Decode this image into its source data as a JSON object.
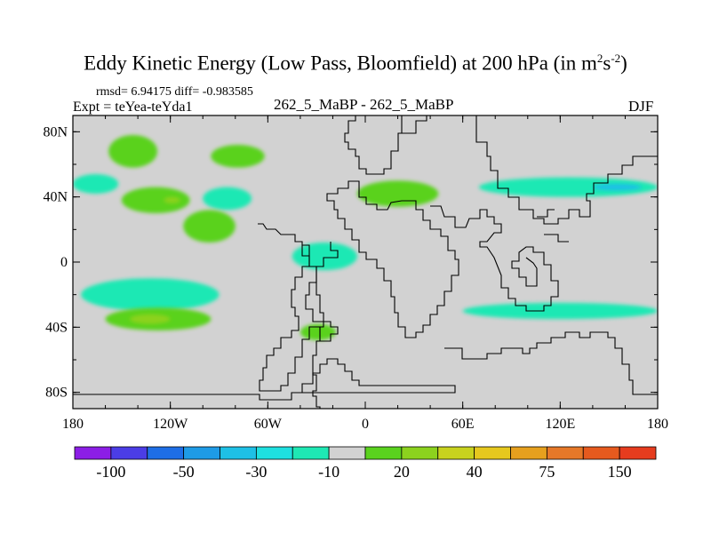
{
  "header": {
    "title_main": "Eddy Kinetic Energy (Low Pass, Bloomfield) at 200 hPa (in m",
    "title_sup1": "2",
    "title_s": "s",
    "title_sup2": "-2",
    "title_end": ")",
    "stats": "rmsd= 6.94175 diff= -0.983585",
    "expt": "Expt = teYea-teYda1",
    "runs": "262_5_MaBP - 262_5_MaBP",
    "season": "DJF"
  },
  "chart_data": {
    "type": "heatmap",
    "title": "Eddy Kinetic Energy (Low Pass, Bloomfield) at 200 hPa (in m^2 s^-2)",
    "xlim": [
      -180,
      180
    ],
    "ylim": [
      -90,
      90
    ],
    "x_ticks": [
      {
        "value": -180,
        "label": "180"
      },
      {
        "value": -120,
        "label": "120W"
      },
      {
        "value": -60,
        "label": "60W"
      },
      {
        "value": 0,
        "label": "0"
      },
      {
        "value": 60,
        "label": "60E"
      },
      {
        "value": 120,
        "label": "120E"
      },
      {
        "value": 180,
        "label": "180"
      }
    ],
    "y_ticks": [
      {
        "value": 80,
        "label": "80N"
      },
      {
        "value": 40,
        "label": "40N"
      },
      {
        "value": 0,
        "label": "0"
      },
      {
        "value": -40,
        "label": "40S"
      },
      {
        "value": -80,
        "label": "80S"
      }
    ],
    "colorbar": {
      "colors": [
        "#8c1ee6",
        "#4b3de6",
        "#1e6ee6",
        "#1e9be6",
        "#1ec0e6",
        "#1ee0e0",
        "#1ee8b4",
        "#d2d2d2",
        "#5ad21e",
        "#8cd21e",
        "#c8d21e",
        "#e6c81e",
        "#e6a01e",
        "#e67828",
        "#e65a1e",
        "#e63c1e"
      ],
      "labels": [
        {
          "after_box": 1,
          "text": "-100"
        },
        {
          "after_box": 3,
          "text": "-50"
        },
        {
          "after_box": 5,
          "text": "-30"
        },
        {
          "after_box": 7,
          "text": "-10"
        },
        {
          "after_box": 9,
          "text": "20"
        },
        {
          "after_box": 11,
          "text": "40"
        },
        {
          "after_box": 13,
          "text": "75"
        },
        {
          "after_box": 15,
          "text": "150"
        }
      ]
    },
    "background_color": "#d2d2d2",
    "coastline_color": "#000000",
    "regions": [
      {
        "name": "N Pacific high-lat band",
        "lon": [
          -158,
          -128
        ],
        "lat": [
          58,
          78
        ],
        "color": "#5ad21e"
      },
      {
        "name": "N Atlantic high-lat band",
        "lon": [
          -95,
          -62
        ],
        "lat": [
          58,
          72
        ],
        "color": "#5ad21e"
      },
      {
        "name": "W Pacific midlat cyan",
        "lon": [
          -180,
          -152
        ],
        "lat": [
          42,
          54
        ],
        "color": "#1ee8b4"
      },
      {
        "name": "Central Pacific green",
        "lon": [
          -150,
          -108
        ],
        "lat": [
          30,
          46
        ],
        "color": "#5ad21e"
      },
      {
        "name": "Central Pacific core",
        "lon": [
          -124,
          -114
        ],
        "lat": [
          36,
          40
        ],
        "color": "#8cd21e"
      },
      {
        "name": "E Pacific cyan",
        "lon": [
          -100,
          -70
        ],
        "lat": [
          32,
          46
        ],
        "color": "#1ee8b4"
      },
      {
        "name": "E Pacific green",
        "lon": [
          -112,
          -80
        ],
        "lat": [
          12,
          32
        ],
        "color": "#5ad21e"
      },
      {
        "name": "Pacific tropical cyan",
        "lon": [
          -175,
          -90
        ],
        "lat": [
          -30,
          -10
        ],
        "color": "#1ee8b4"
      },
      {
        "name": "S Pacific green",
        "lon": [
          -160,
          -95
        ],
        "lat": [
          -42,
          -28
        ],
        "color": "#5ad21e"
      },
      {
        "name": "S Pacific core",
        "lon": [
          -145,
          -120
        ],
        "lat": [
          -38,
          -32
        ],
        "color": "#8cd21e"
      },
      {
        "name": "Tropical Atlantic cyan",
        "lon": [
          -45,
          -5
        ],
        "lat": [
          -5,
          12
        ],
        "color": "#1ee8b4"
      },
      {
        "name": "S Atlantic green",
        "lon": [
          -40,
          -18
        ],
        "lat": [
          -48,
          -38
        ],
        "color": "#5ad21e"
      },
      {
        "name": "Europe green",
        "lon": [
          -5,
          45
        ],
        "lat": [
          34,
          50
        ],
        "color": "#5ad21e"
      },
      {
        "name": "Asia jet cyan",
        "lon": [
          70,
          180
        ],
        "lat": [
          40,
          52
        ],
        "color": "#1ee8b4"
      },
      {
        "name": "Asia jet core",
        "lon": [
          140,
          170
        ],
        "lat": [
          44,
          48
        ],
        "color": "#1ec0e6"
      },
      {
        "name": "Indian Ocean cyan",
        "lon": [
          60,
          180
        ],
        "lat": [
          -35,
          -25
        ],
        "color": "#1ee8b4"
      }
    ]
  }
}
